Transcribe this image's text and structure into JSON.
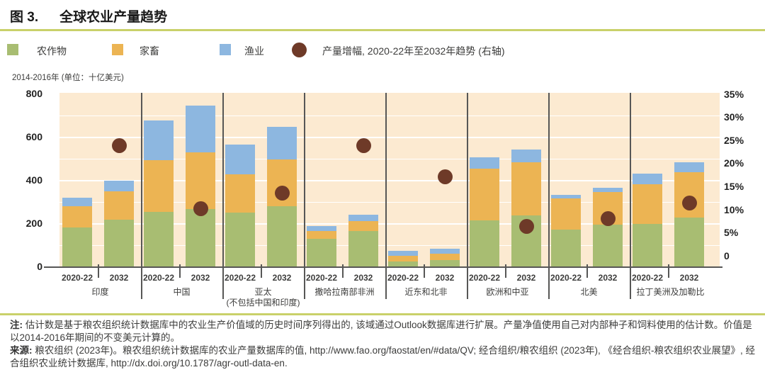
{
  "header": {
    "figure_label": "图 3.",
    "title": "全球农业产量趋势"
  },
  "legend": [
    {
      "label": "农作物",
      "shape": "square"
    },
    {
      "label": "家畜",
      "shape": "square"
    },
    {
      "label": "渔业",
      "shape": "square"
    },
    {
      "label": "产量增幅, 2020-22年至2032年趋势 (右轴)",
      "shape": "circle"
    }
  ],
  "colors": {
    "crops": "#A8BD72",
    "livestock": "#ECB453",
    "fisheries": "#8DB7E0",
    "dot": "#6E3A28",
    "panel": "#FCEAD1",
    "gridline": "#FFFFFF",
    "rule": "#C9D16A",
    "axis": "#575756",
    "text": "#3C3C3B"
  },
  "chart_data": {
    "type": "bar",
    "stacked": true,
    "title": "全球农业产量趋势",
    "unit_label": "2014-2016年 (单位：十亿美元)",
    "series_names": [
      "农作物",
      "家畜",
      "渔业"
    ],
    "dot_series_name": "产量增幅, 2020-22年至2032年趋势 (右轴)",
    "periods": [
      "2020-22",
      "2032"
    ],
    "left_axis": {
      "min": 0,
      "max": 800,
      "ticks": [
        0,
        200,
        400,
        600,
        800
      ],
      "grid_interval": 100
    },
    "right_axis": {
      "min": 0,
      "max": 35,
      "tick_labels_top_down": [
        "35%",
        "30%",
        "25%",
        "20%",
        "15%",
        "10%",
        "5%",
        "0"
      ]
    },
    "groups": [
      {
        "region": "印度",
        "region_line2": "",
        "bars": [
          [
            185,
            97,
            40
          ],
          [
            221,
            129,
            51
          ]
        ],
        "growth_pct": 24
      },
      {
        "region": "中国",
        "region_line2": "",
        "bars": [
          [
            257,
            238,
            184
          ],
          [
            270,
            262,
            216
          ]
        ],
        "growth_pct": 10.3
      },
      {
        "region": "亚太",
        "region_line2": "(不包括中国和印度)",
        "bars": [
          [
            251,
            180,
            136
          ],
          [
            282,
            217,
            149
          ]
        ],
        "growth_pct": 13.7
      },
      {
        "region": "撒哈拉南部非洲",
        "region_line2": "",
        "bars": [
          [
            131,
            36,
            24
          ],
          [
            167,
            46,
            29
          ]
        ],
        "growth_pct": 24
      },
      {
        "region": "近东和北非",
        "region_line2": "",
        "bars": [
          [
            25,
            27,
            23
          ],
          [
            32,
            30,
            23
          ]
        ],
        "growth_pct": 17.2
      },
      {
        "region": "欧洲和中亚",
        "region_line2": "",
        "bars": [
          [
            215,
            241,
            51
          ],
          [
            240,
            246,
            57
          ]
        ],
        "growth_pct": 6.5
      },
      {
        "region": "北美",
        "region_line2": "",
        "bars": [
          [
            175,
            144,
            17
          ],
          [
            196,
            153,
            17
          ]
        ],
        "growth_pct": 8.2
      },
      {
        "region": "拉丁美洲及加勒比",
        "region_line2": "",
        "bars": [
          [
            199,
            186,
            49
          ],
          [
            231,
            209,
            46
          ]
        ],
        "growth_pct": 11.5
      }
    ]
  },
  "notes": {
    "note_label": "注:",
    "note_text": " 估计数是基于粮农组织统计数据库中的农业生产价值域的历史时间序列得出的, 该域通过Outlook数据库进行扩展。产量净值使用自己对内部种子和饲料使用的估计数。价值是以2014-2016年期间的不变美元计算的。",
    "source_label": "来源:",
    "source_part1": " 粮农组织 (2023年)。粮农组织统计数据库的农业产量数据库的值, ",
    "source_url1": "http://www.fao.org/faostat/en/#data/QV",
    "source_part2": "; 经合组织/粮农组织 (2023年), 《经合组织-粮农组织农业展望》, 经合组织农业统计数据库, ",
    "source_url2": "http://dx.doi.org/10.1787/agr-outl-data-en",
    "source_part3": "."
  }
}
